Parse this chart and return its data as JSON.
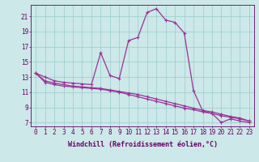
{
  "xlabel": "Windchill (Refroidissement éolien,°C)",
  "background_color": "#cce8e8",
  "line_color": "#993399",
  "grid_color": "#99cccc",
  "x_hours": [
    0,
    1,
    2,
    3,
    4,
    5,
    6,
    7,
    8,
    9,
    10,
    11,
    12,
    13,
    14,
    15,
    16,
    17,
    18,
    19,
    20,
    21,
    22,
    23
  ],
  "temp_line": [
    13.5,
    13.0,
    12.5,
    12.3,
    12.2,
    12.1,
    12.0,
    16.2,
    13.2,
    12.8,
    17.8,
    18.2,
    21.5,
    22.0,
    20.5,
    20.2,
    18.8,
    11.2,
    8.5,
    8.2,
    7.0,
    7.5,
    7.2,
    7.0
  ],
  "windchill_line1": [
    13.5,
    12.5,
    12.2,
    12.0,
    11.8,
    11.7,
    11.6,
    11.5,
    11.3,
    11.1,
    10.9,
    10.7,
    10.4,
    10.1,
    9.8,
    9.5,
    9.2,
    8.9,
    8.6,
    8.4,
    8.1,
    7.8,
    7.6,
    7.2
  ],
  "windchill_line2": [
    13.5,
    12.3,
    12.0,
    11.8,
    11.7,
    11.6,
    11.5,
    11.4,
    11.2,
    11.0,
    10.7,
    10.4,
    10.1,
    9.8,
    9.5,
    9.2,
    8.9,
    8.7,
    8.4,
    8.2,
    7.9,
    7.7,
    7.5,
    7.2
  ],
  "ylim_min": 6.5,
  "ylim_max": 22.5,
  "yticks": [
    7,
    9,
    11,
    13,
    15,
    17,
    19,
    21
  ],
  "axis_color": "#660066",
  "tick_color": "#660066",
  "label_fontsize": 6,
  "tick_fontsize": 5.5
}
